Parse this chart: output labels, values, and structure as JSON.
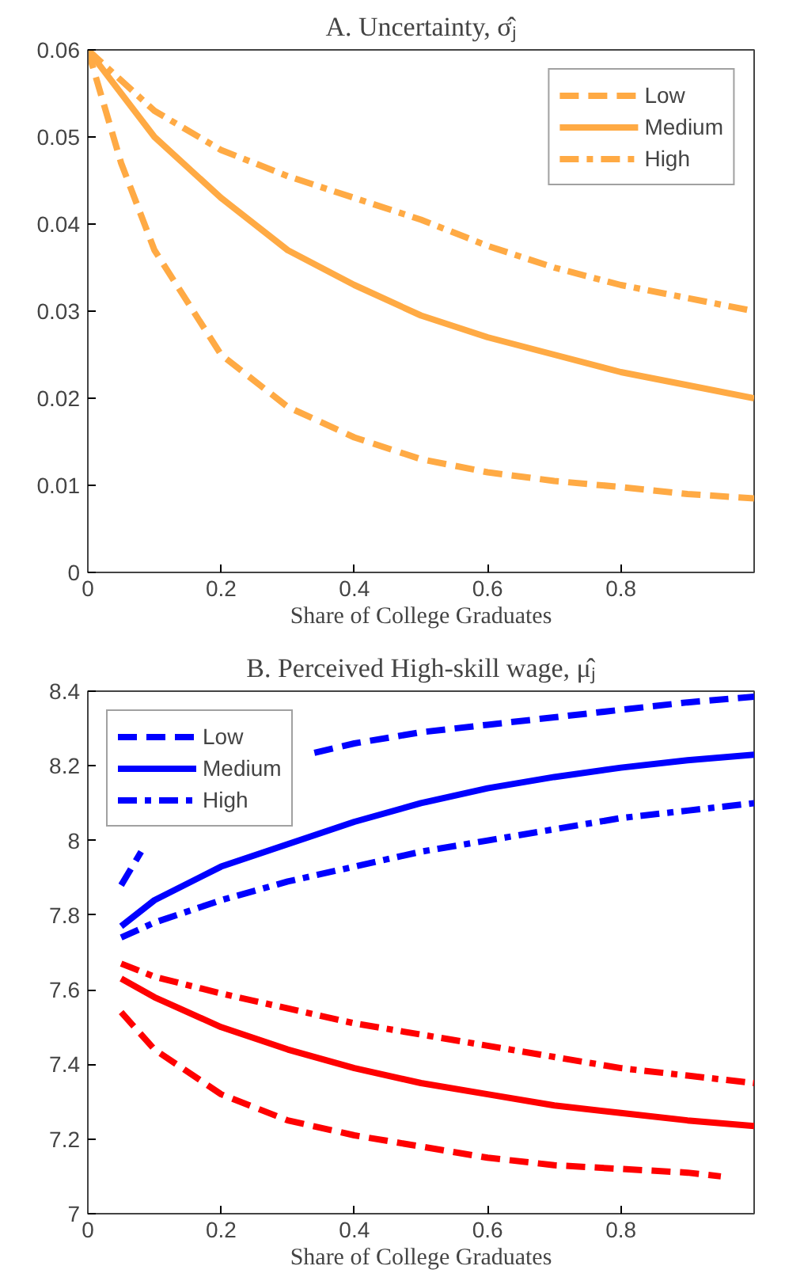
{
  "chart_data": [
    {
      "type": "line",
      "title": "A. Uncertainty, σ̂ⱼ",
      "xlabel": "Share of College Graduates",
      "xlim": [
        0,
        1
      ],
      "xticks": [
        0,
        0.2,
        0.4,
        0.6,
        0.8
      ],
      "ylim": [
        0,
        0.06
      ],
      "yticks": [
        0,
        0.01,
        0.02,
        0.03,
        0.04,
        0.05,
        0.06
      ],
      "grid": false,
      "legend": "top right",
      "series": [
        {
          "name": "Low",
          "color": "#ffaa44",
          "line_style": "dashed",
          "x": [
            0,
            0.05,
            0.1,
            0.2,
            0.3,
            0.4,
            0.5,
            0.6,
            0.7,
            0.8,
            0.9,
            1.0
          ],
          "values": [
            0.06,
            0.047,
            0.037,
            0.025,
            0.019,
            0.0155,
            0.013,
            0.0115,
            0.0105,
            0.0098,
            0.009,
            0.0085
          ]
        },
        {
          "name": "Medium",
          "color": "#ffaa44",
          "line_style": "solid",
          "x": [
            0,
            0.05,
            0.1,
            0.2,
            0.3,
            0.4,
            0.5,
            0.6,
            0.7,
            0.8,
            0.9,
            1.0
          ],
          "values": [
            0.06,
            0.055,
            0.05,
            0.043,
            0.037,
            0.033,
            0.0295,
            0.027,
            0.025,
            0.023,
            0.0215,
            0.02
          ]
        },
        {
          "name": "High",
          "color": "#ffaa44",
          "line_style": "dashdot",
          "x": [
            0,
            0.1,
            0.2,
            0.3,
            0.4,
            0.5,
            0.6,
            0.7,
            0.8,
            0.9,
            1.0
          ],
          "values": [
            0.06,
            0.053,
            0.0485,
            0.0455,
            0.043,
            0.0405,
            0.0375,
            0.035,
            0.033,
            0.0315,
            0.03
          ]
        }
      ]
    },
    {
      "type": "line",
      "title": "B. Perceived High-skill wage, μ̂ⱼ",
      "xlabel": "Share of College Graduates",
      "xlim": [
        0,
        1
      ],
      "xticks": [
        0,
        0.2,
        0.4,
        0.6,
        0.8
      ],
      "ylim": [
        7,
        8.4
      ],
      "yticks": [
        7,
        7.2,
        7.4,
        7.6,
        7.8,
        8,
        8.2,
        8.4
      ],
      "grid": false,
      "legend": "top left",
      "series": [
        {
          "name": "Low",
          "color": "#0000ff",
          "line_style": "dashed",
          "x": [
            0.05,
            0.08,
            0.2,
            0.34,
            0.4,
            0.5,
            0.6,
            0.7,
            0.8,
            0.9,
            1.0
          ],
          "values": [
            7.88,
            7.97,
            null,
            8.235,
            8.26,
            8.29,
            8.31,
            8.33,
            8.35,
            8.37,
            8.385
          ]
        },
        {
          "name": "Medium",
          "color": "#0000ff",
          "line_style": "solid",
          "x": [
            0.05,
            0.1,
            0.2,
            0.3,
            0.4,
            0.5,
            0.6,
            0.7,
            0.8,
            0.9,
            1.0
          ],
          "values": [
            7.77,
            7.84,
            7.93,
            7.99,
            8.05,
            8.1,
            8.14,
            8.17,
            8.195,
            8.215,
            8.23
          ]
        },
        {
          "name": "High",
          "color": "#0000ff",
          "line_style": "dashdot",
          "x": [
            0.05,
            0.1,
            0.2,
            0.3,
            0.4,
            0.5,
            0.6,
            0.7,
            0.8,
            0.9,
            1.0
          ],
          "values": [
            7.74,
            7.78,
            7.84,
            7.89,
            7.93,
            7.97,
            8.0,
            8.03,
            8.06,
            8.08,
            8.1
          ]
        },
        {
          "color": "#ff0000",
          "line_style": "dashed",
          "x": [
            0.05,
            0.1,
            0.2,
            0.3,
            0.4,
            0.5,
            0.6,
            0.7,
            0.8,
            0.9,
            0.95
          ],
          "values": [
            7.54,
            7.44,
            7.32,
            7.25,
            7.21,
            7.18,
            7.15,
            7.13,
            7.12,
            7.11,
            7.1
          ]
        },
        {
          "color": "#ff0000",
          "line_style": "solid",
          "x": [
            0.05,
            0.1,
            0.2,
            0.3,
            0.4,
            0.5,
            0.6,
            0.7,
            0.8,
            0.9,
            1.0
          ],
          "values": [
            7.63,
            7.58,
            7.5,
            7.44,
            7.39,
            7.35,
            7.32,
            7.29,
            7.27,
            7.25,
            7.235
          ]
        },
        {
          "color": "#ff0000",
          "line_style": "dashdot",
          "x": [
            0.05,
            0.1,
            0.2,
            0.3,
            0.4,
            0.5,
            0.6,
            0.7,
            0.8,
            0.9,
            1.0
          ],
          "values": [
            7.67,
            7.635,
            7.59,
            7.55,
            7.51,
            7.48,
            7.45,
            7.42,
            7.39,
            7.37,
            7.35
          ]
        }
      ]
    }
  ]
}
